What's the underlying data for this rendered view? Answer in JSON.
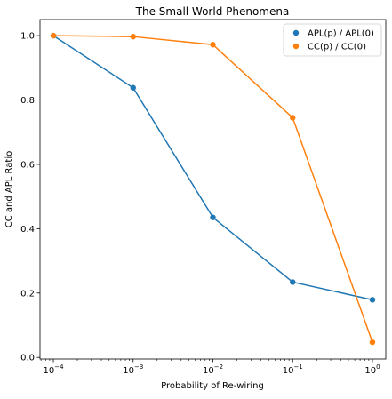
{
  "chart_data": {
    "type": "line",
    "title": "The Small World Phenomena",
    "xlabel": "Probability of Re-wiring",
    "ylabel": "CC and APL Ratio",
    "x_scale": "log",
    "x": [
      0.0001,
      0.001,
      0.01,
      0.1,
      1
    ],
    "xticks": [
      {
        "base": "10",
        "exp": "−4",
        "value": 0.0001
      },
      {
        "base": "10",
        "exp": "−3",
        "value": 0.001
      },
      {
        "base": "10",
        "exp": "−2",
        "value": 0.01
      },
      {
        "base": "10",
        "exp": "−1",
        "value": 0.1
      },
      {
        "base": "10",
        "exp": "0",
        "value": 1
      }
    ],
    "yticks": [
      {
        "label": "0.0",
        "value": 0.0
      },
      {
        "label": "0.2",
        "value": 0.2
      },
      {
        "label": "0.4",
        "value": 0.4
      },
      {
        "label": "0.6",
        "value": 0.6
      },
      {
        "label": "0.8",
        "value": 0.8
      },
      {
        "label": "1.0",
        "value": 1.0
      }
    ],
    "xlim": [
      6.8e-05,
      1.47
    ],
    "ylim": [
      -0.005,
      1.05
    ],
    "grid": false,
    "legend_position": "top-right",
    "series": [
      {
        "name": "APL(p) / APL(0)",
        "color": "#1f77b4",
        "values": [
          1.0,
          0.838,
          0.435,
          0.234,
          0.179
        ]
      },
      {
        "name": "CC(p) / CC(0)",
        "color": "#ff7f0e",
        "values": [
          1.0,
          0.997,
          0.972,
          0.745,
          0.047
        ]
      }
    ]
  }
}
